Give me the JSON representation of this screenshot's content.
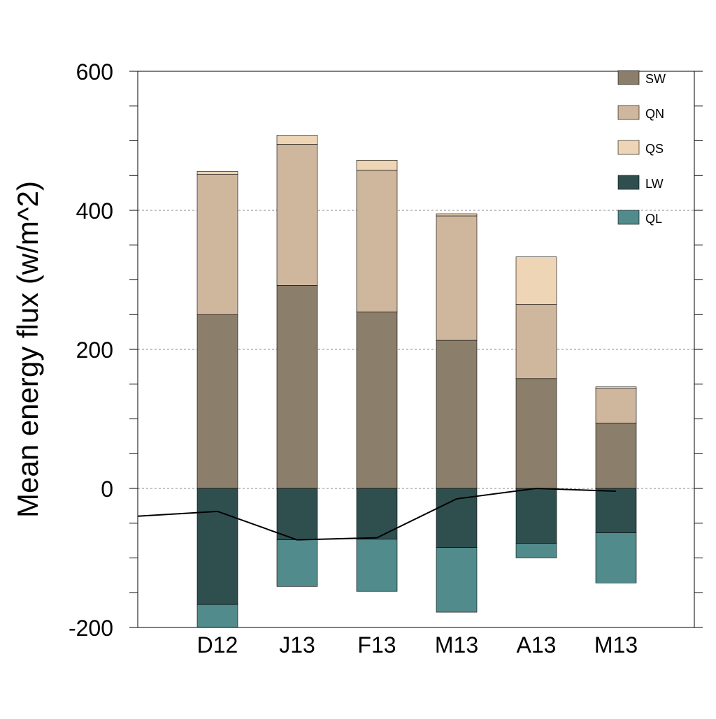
{
  "chart_data": {
    "type": "bar",
    "stacked": true,
    "title": "",
    "xlabel": "",
    "ylabel": "Mean energy flux (w/m^2)",
    "ylim": [
      -200,
      600
    ],
    "yticks": [
      "600",
      "400",
      "200",
      "0",
      "-200"
    ],
    "ytick_values": [
      600,
      400,
      200,
      0,
      -200
    ],
    "grid": "dashed at 0, 200, 400",
    "legend_position": "top-right",
    "categories": [
      "D12",
      "J13",
      "F13",
      "M13",
      "A13",
      "M13"
    ],
    "series": [
      {
        "name": "SW",
        "color": "#8b7e6b",
        "values": [
          250,
          292,
          254,
          213,
          158,
          94
        ]
      },
      {
        "name": "QN",
        "color": "#cfb79e",
        "values": [
          202,
          203,
          204,
          179,
          107,
          50
        ]
      },
      {
        "name": "QS",
        "color": "#eed5b5",
        "values": [
          4,
          13,
          14,
          3,
          68,
          2
        ]
      },
      {
        "name": "LW",
        "color": "#2f4f4f",
        "values": [
          -167,
          -74,
          -73,
          -85,
          -79,
          -64
        ]
      },
      {
        "name": "QL",
        "color": "#528b8b",
        "values": [
          -33,
          -67,
          -75,
          -93,
          -21,
          -72
        ]
      }
    ],
    "line": {
      "color": "#000000",
      "x_index": [
        -1,
        0,
        1,
        2,
        3,
        4,
        5
      ],
      "values": [
        -40,
        -33,
        -74,
        -71,
        -15,
        0,
        -4
      ]
    }
  }
}
